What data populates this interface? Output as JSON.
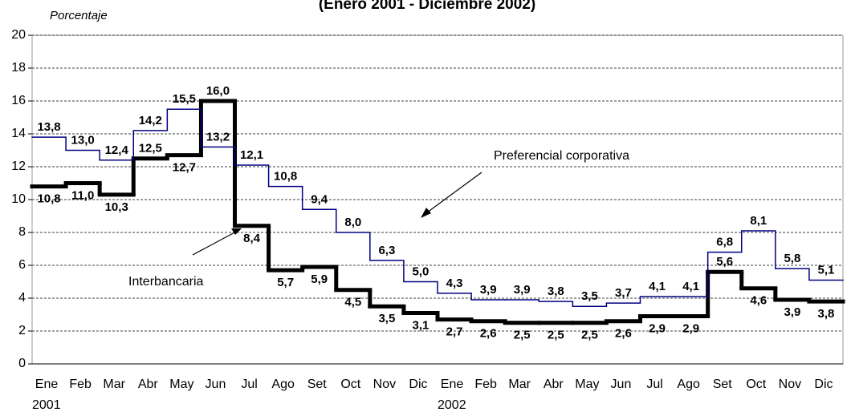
{
  "chart_data": {
    "type": "step",
    "title": "(Enero 2001 - Diciembre 2002)",
    "y_axis_label": "Porcentaje",
    "categories": [
      "Ene",
      "Feb",
      "Mar",
      "Abr",
      "May",
      "Jun",
      "Jul",
      "Ago",
      "Set",
      "Oct",
      "Nov",
      "Dic",
      "Ene",
      "Feb",
      "Mar",
      "Abr",
      "May",
      "Jun",
      "Jul",
      "Ago",
      "Set",
      "Oct",
      "Nov",
      "Dic"
    ],
    "x_group_labels": [
      "2001",
      "2002"
    ],
    "ylim": [
      0,
      20
    ],
    "yticks": [
      0,
      2,
      4,
      6,
      8,
      10,
      12,
      14,
      16,
      18,
      20
    ],
    "grid": true,
    "series": [
      {
        "name": "Interbancaria",
        "color": "#000000",
        "values": [
          10.8,
          11.0,
          10.3,
          12.5,
          12.7,
          16.0,
          8.4,
          5.7,
          5.9,
          4.5,
          3.5,
          3.1,
          2.7,
          2.6,
          2.5,
          2.5,
          2.5,
          2.6,
          2.9,
          2.9,
          5.6,
          4.6,
          3.9,
          3.8
        ],
        "value_labels": [
          "10,8",
          "11,0",
          "10,3",
          "12,5",
          "12,7",
          "16,0",
          "8,4",
          "5,7",
          "5,9",
          "4,5",
          "3,5",
          "3,1",
          "2,7",
          "2,6",
          "2,5",
          "2,5",
          "2,5",
          "2,6",
          "2,9",
          "2,9",
          "5,6",
          "4,6",
          "3,9",
          "3,8"
        ]
      },
      {
        "name": "Preferencial corporativa",
        "color": "#000080",
        "values": [
          13.8,
          13.0,
          12.4,
          14.2,
          15.5,
          13.2,
          12.1,
          10.8,
          9.4,
          8.0,
          6.3,
          5.0,
          4.3,
          3.9,
          3.9,
          3.8,
          3.5,
          3.7,
          4.1,
          4.1,
          6.8,
          8.1,
          5.8,
          5.1
        ],
        "value_labels": [
          "13,8",
          "13,0",
          "12,4",
          "14,2",
          "15,5",
          "13,2",
          "12,1",
          "10,8",
          "9,4",
          "8,0",
          "6,3",
          "5,0",
          "4,3",
          "3,9",
          "3,9",
          "3,8",
          "3,5",
          "3,7",
          "4,1",
          "4,1",
          "6,8",
          "8,1",
          "5,8",
          "5,1"
        ]
      }
    ]
  }
}
